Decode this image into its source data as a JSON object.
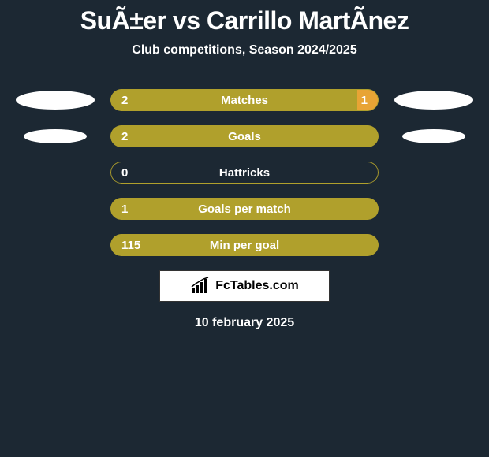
{
  "header": {
    "title": "SuÃ±er vs Carrillo MartÃnez",
    "subtitle": "Club competitions, Season 2024/2025"
  },
  "rows": [
    {
      "label": "Matches",
      "left_value": "2",
      "right_value": "1",
      "show_right_value": true,
      "left_ellipse": true,
      "right_ellipse": true,
      "fill_left_pct": 92,
      "fill_right_pct": 8,
      "left_color": "#b0a02c",
      "right_color": "#e8a435"
    },
    {
      "label": "Goals",
      "left_value": "2",
      "right_value": "",
      "show_right_value": false,
      "left_ellipse": true,
      "right_ellipse": true,
      "fill_left_pct": 100,
      "fill_right_pct": 0,
      "left_color": "#b0a02c",
      "right_color": "#e8a435"
    },
    {
      "label": "Hattricks",
      "left_value": "0",
      "right_value": "",
      "show_right_value": false,
      "left_ellipse": false,
      "right_ellipse": false,
      "fill_left_pct": 0,
      "fill_right_pct": 0,
      "left_color": "#b0a02c",
      "right_color": "#e8a435"
    },
    {
      "label": "Goals per match",
      "left_value": "1",
      "right_value": "",
      "show_right_value": false,
      "left_ellipse": false,
      "right_ellipse": false,
      "fill_left_pct": 100,
      "fill_right_pct": 0,
      "left_color": "#b0a02c",
      "right_color": "#e8a435"
    },
    {
      "label": "Min per goal",
      "left_value": "115",
      "right_value": "",
      "show_right_value": false,
      "left_ellipse": false,
      "right_ellipse": false,
      "fill_left_pct": 100,
      "fill_right_pct": 0,
      "left_color": "#b0a02c",
      "right_color": "#e8a435"
    }
  ],
  "brand": {
    "text": "FcTables.com"
  },
  "footer": {
    "date": "10 february 2025"
  },
  "theme": {
    "bg": "#1c2833",
    "ellipse": "#ffffff",
    "bar_border": "#b0a02c"
  }
}
